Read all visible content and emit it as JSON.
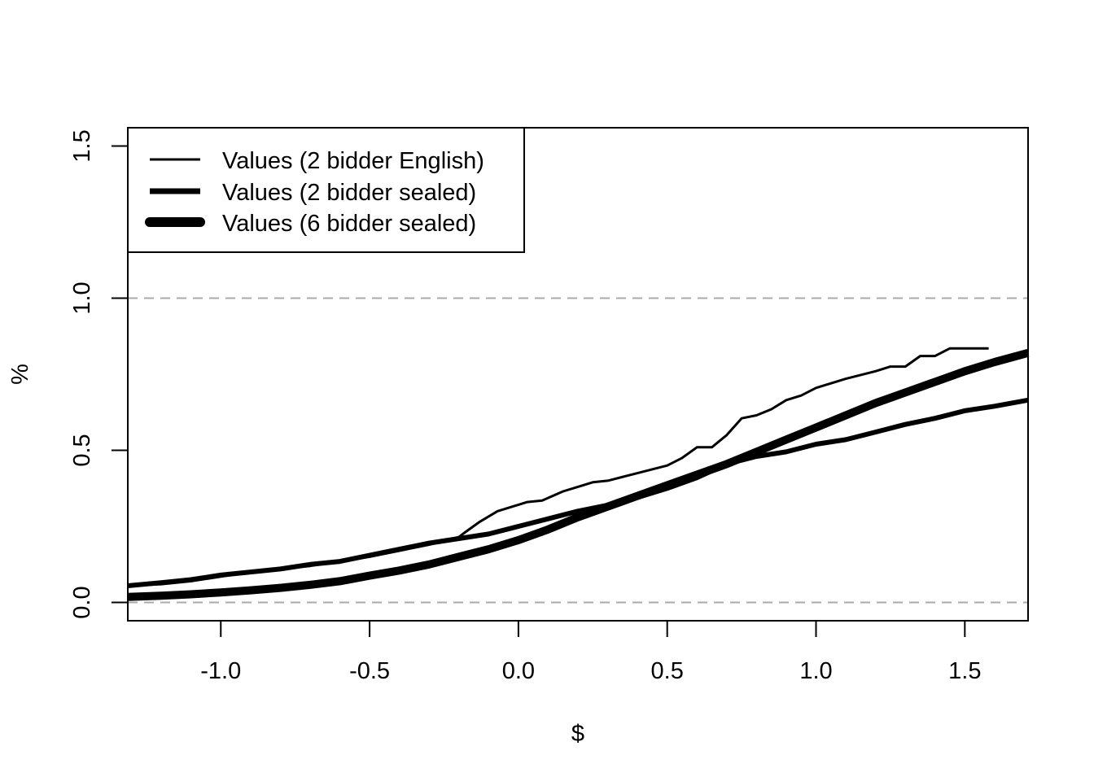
{
  "chart_data": {
    "type": "line",
    "title": "",
    "xlabel": "$",
    "ylabel": "%",
    "xlim": [
      -1.3125,
      1.7125
    ],
    "ylim": [
      -0.06,
      1.56
    ],
    "x_ticks": [
      -1.0,
      -0.5,
      0.0,
      0.5,
      1.0,
      1.5
    ],
    "x_tick_labels": [
      "-1.0",
      "-0.5",
      "0.0",
      "0.5",
      "1.0",
      "1.5"
    ],
    "y_ticks": [
      0.0,
      0.5,
      1.0,
      1.5
    ],
    "y_tick_labels": [
      "0.0",
      "0.5",
      "1.0",
      "1.5"
    ],
    "reference_lines": [
      0.0,
      1.0
    ],
    "grid": false,
    "legend_position": "top-left",
    "series": [
      {
        "name": "Values (2 bidder English)",
        "line_width": "thin",
        "color": "#000000",
        "points": [
          [
            -1.3125,
            0.055
          ],
          [
            -1.2,
            0.06
          ],
          [
            -1.1,
            0.07
          ],
          [
            -1.0,
            0.085
          ],
          [
            -0.9,
            0.1
          ],
          [
            -0.8,
            0.11
          ],
          [
            -0.7,
            0.12
          ],
          [
            -0.6,
            0.135
          ],
          [
            -0.5,
            0.15
          ],
          [
            -0.4,
            0.17
          ],
          [
            -0.3,
            0.19
          ],
          [
            -0.2,
            0.215
          ],
          [
            -0.18,
            0.23
          ],
          [
            -0.13,
            0.265
          ],
          [
            -0.07,
            0.3
          ],
          [
            -0.02,
            0.315
          ],
          [
            0.03,
            0.33
          ],
          [
            0.08,
            0.335
          ],
          [
            0.15,
            0.365
          ],
          [
            0.2,
            0.38
          ],
          [
            0.25,
            0.395
          ],
          [
            0.3,
            0.4
          ],
          [
            0.4,
            0.425
          ],
          [
            0.5,
            0.45
          ],
          [
            0.55,
            0.475
          ],
          [
            0.6,
            0.51
          ],
          [
            0.65,
            0.51
          ],
          [
            0.7,
            0.55
          ],
          [
            0.75,
            0.605
          ],
          [
            0.8,
            0.615
          ],
          [
            0.85,
            0.635
          ],
          [
            0.9,
            0.665
          ],
          [
            0.95,
            0.68
          ],
          [
            1.0,
            0.705
          ],
          [
            1.1,
            0.735
          ],
          [
            1.2,
            0.76
          ],
          [
            1.25,
            0.775
          ],
          [
            1.3,
            0.775
          ],
          [
            1.35,
            0.81
          ],
          [
            1.4,
            0.81
          ],
          [
            1.45,
            0.835
          ],
          [
            1.5,
            0.835
          ],
          [
            1.58,
            0.835
          ]
        ]
      },
      {
        "name": "Values (2 bidder sealed)",
        "line_width": "medium",
        "color": "#000000",
        "points": [
          [
            -1.3125,
            0.055
          ],
          [
            -1.2,
            0.065
          ],
          [
            -1.1,
            0.075
          ],
          [
            -1.0,
            0.09
          ],
          [
            -0.9,
            0.1
          ],
          [
            -0.8,
            0.11
          ],
          [
            -0.7,
            0.125
          ],
          [
            -0.6,
            0.135
          ],
          [
            -0.5,
            0.155
          ],
          [
            -0.4,
            0.175
          ],
          [
            -0.3,
            0.195
          ],
          [
            -0.2,
            0.21
          ],
          [
            -0.1,
            0.225
          ],
          [
            0.0,
            0.25
          ],
          [
            0.1,
            0.275
          ],
          [
            0.2,
            0.3
          ],
          [
            0.3,
            0.32
          ],
          [
            0.4,
            0.345
          ],
          [
            0.5,
            0.375
          ],
          [
            0.6,
            0.41
          ],
          [
            0.7,
            0.455
          ],
          [
            0.8,
            0.48
          ],
          [
            0.9,
            0.495
          ],
          [
            1.0,
            0.52
          ],
          [
            1.1,
            0.535
          ],
          [
            1.2,
            0.56
          ],
          [
            1.3,
            0.585
          ],
          [
            1.4,
            0.605
          ],
          [
            1.5,
            0.63
          ],
          [
            1.6,
            0.645
          ],
          [
            1.7125,
            0.665
          ]
        ]
      },
      {
        "name": "Values (6 bidder sealed)",
        "line_width": "thick",
        "color": "#000000",
        "points": [
          [
            -1.3125,
            0.018
          ],
          [
            -1.2,
            0.022
          ],
          [
            -1.1,
            0.027
          ],
          [
            -1.0,
            0.033
          ],
          [
            -0.9,
            0.04
          ],
          [
            -0.8,
            0.048
          ],
          [
            -0.7,
            0.058
          ],
          [
            -0.6,
            0.07
          ],
          [
            -0.5,
            0.088
          ],
          [
            -0.4,
            0.105
          ],
          [
            -0.3,
            0.125
          ],
          [
            -0.2,
            0.15
          ],
          [
            -0.1,
            0.175
          ],
          [
            0.0,
            0.205
          ],
          [
            0.1,
            0.24
          ],
          [
            0.2,
            0.28
          ],
          [
            0.3,
            0.315
          ],
          [
            0.4,
            0.35
          ],
          [
            0.5,
            0.385
          ],
          [
            0.6,
            0.42
          ],
          [
            0.7,
            0.455
          ],
          [
            0.8,
            0.495
          ],
          [
            0.9,
            0.535
          ],
          [
            1.0,
            0.575
          ],
          [
            1.1,
            0.615
          ],
          [
            1.2,
            0.655
          ],
          [
            1.3,
            0.69
          ],
          [
            1.4,
            0.725
          ],
          [
            1.5,
            0.76
          ],
          [
            1.6,
            0.79
          ],
          [
            1.7125,
            0.82
          ]
        ]
      }
    ]
  }
}
